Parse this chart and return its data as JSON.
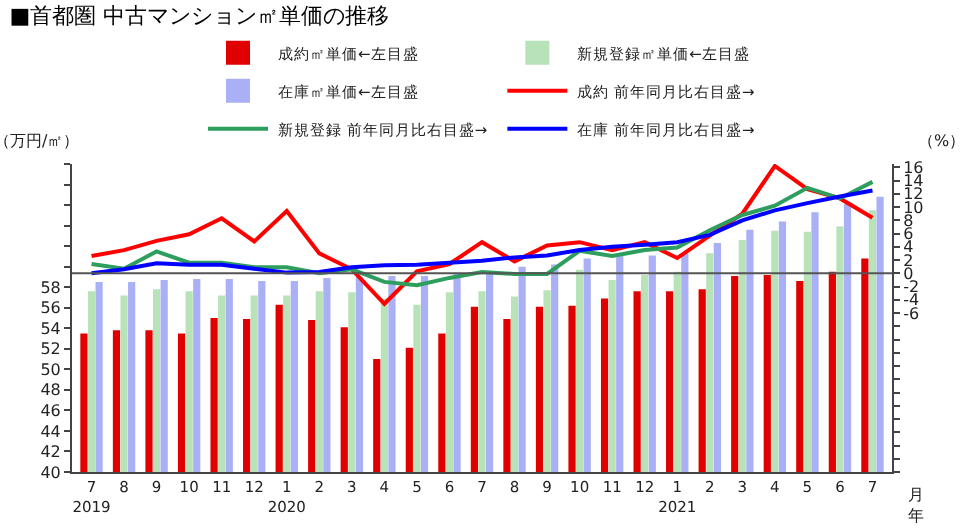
{
  "chart_data": {
    "type": "bar",
    "title": "■首都圏 中古マンション㎡単価の推移",
    "ylabel": "（万円/㎡）",
    "y2label": "（%）",
    "xlabel": "月年",
    "categories": [
      "7\n2019",
      "8",
      "9",
      "10",
      "11",
      "12",
      "1\n2020",
      "2",
      "3",
      "4",
      "5",
      "6",
      "7",
      "8",
      "9",
      "10",
      "11",
      "12",
      "1\n2021",
      "2",
      "3",
      "4",
      "5",
      "6",
      "7"
    ],
    "series": [
      {
        "name": "成約㎡単価←左目盛",
        "color": "#e00000",
        "values": [
          53.5,
          53.8,
          53.8,
          53.5,
          55.0,
          54.9,
          56.3,
          54.8,
          54.1,
          51.0,
          52.1,
          53.5,
          56.1,
          54.9,
          56.1,
          56.2,
          56.9,
          57.6,
          57.6,
          57.8,
          59.1,
          59.2,
          58.6,
          59.5,
          60.8
        ]
      },
      {
        "name": "新規登録㎡単価←左目盛",
        "color": "#b8e2b8",
        "values": [
          57.6,
          57.2,
          57.8,
          57.6,
          57.2,
          57.2,
          57.2,
          57.6,
          57.5,
          56.9,
          56.3,
          57.5,
          57.6,
          57.1,
          57.7,
          59.7,
          58.7,
          59.2,
          59.5,
          61.3,
          62.6,
          63.5,
          63.4,
          63.9,
          65.5
        ]
      },
      {
        "name": "在庫㎡単価←左目盛",
        "color": "#aab0f6",
        "values": [
          58.5,
          58.5,
          58.7,
          58.8,
          58.8,
          58.6,
          58.6,
          58.9,
          59.0,
          59.1,
          59.1,
          59.4,
          59.4,
          60.0,
          60.2,
          60.8,
          61.1,
          61.1,
          61.3,
          62.3,
          63.6,
          64.4,
          65.3,
          66.1,
          66.8
        ]
      },
      {
        "name": "成約 前年同月比右目盛→",
        "type": "line",
        "axis": "y2",
        "color": "#ff0000",
        "values": [
          2.6,
          3.5,
          4.9,
          5.9,
          8.3,
          4.8,
          9.4,
          3.0,
          0.6,
          -4.6,
          0.3,
          1.4,
          4.7,
          1.8,
          4.2,
          4.7,
          3.5,
          4.7,
          2.3,
          5.7,
          9.0,
          16.2,
          12.7,
          11.3,
          8.4
        ]
      },
      {
        "name": "新規登録 前年同月比右目盛→",
        "type": "line",
        "axis": "y2",
        "color": "#2e9e5e",
        "values": [
          1.4,
          0.7,
          3.3,
          1.6,
          1.6,
          0.9,
          0.9,
          0.0,
          0.6,
          -1.3,
          -1.8,
          -0.7,
          0.2,
          -0.1,
          -0.1,
          3.4,
          2.6,
          3.5,
          3.9,
          6.5,
          8.8,
          10.2,
          12.9,
          11.3,
          13.8
        ]
      },
      {
        "name": "在庫 前年同月比右目盛→",
        "type": "line",
        "axis": "y2",
        "color": "#0000ff",
        "values": [
          0.0,
          0.6,
          1.5,
          1.3,
          1.3,
          0.7,
          0.1,
          0.2,
          0.9,
          1.2,
          1.3,
          1.6,
          1.9,
          2.4,
          2.7,
          3.5,
          4.0,
          4.3,
          4.7,
          5.8,
          8.0,
          9.5,
          10.6,
          11.6,
          12.5
        ]
      }
    ],
    "ylim": [
      40,
      70
    ],
    "yticks": [
      40,
      42,
      44,
      46,
      48,
      50,
      52,
      54,
      56,
      58,
      {
        "value": 60,
        "label": null
      },
      {
        "value": 62,
        "label": null
      },
      {
        "value": 64,
        "label": null
      },
      {
        "value": 66,
        "label": null
      },
      {
        "value": 68,
        "label": null
      },
      {
        "value": 70,
        "label": null
      }
    ],
    "y2lim": [
      -30,
      16.5
    ],
    "y2ticks": [
      {
        "value": -30,
        "label": null
      },
      {
        "value": -28,
        "label": null
      },
      {
        "value": -26,
        "label": null
      },
      {
        "value": -24,
        "label": null
      },
      {
        "value": -22,
        "label": null
      },
      {
        "value": -20,
        "label": null
      },
      {
        "value": -18,
        "label": null
      },
      {
        "value": -16,
        "label": null
      },
      {
        "value": -14,
        "label": null
      },
      {
        "value": -12,
        "label": null
      },
      {
        "value": -10,
        "label": null
      },
      {
        "value": -8,
        "label": null
      },
      -6,
      -4,
      -2,
      0,
      2,
      4,
      6,
      8,
      10,
      12,
      14,
      16
    ],
    "ref_lines": [
      {
        "axis": "y2",
        "value": 0,
        "color": "#555555"
      }
    ],
    "legend": "top",
    "grid": false,
    "marker": "none",
    "line_style": "solid"
  }
}
